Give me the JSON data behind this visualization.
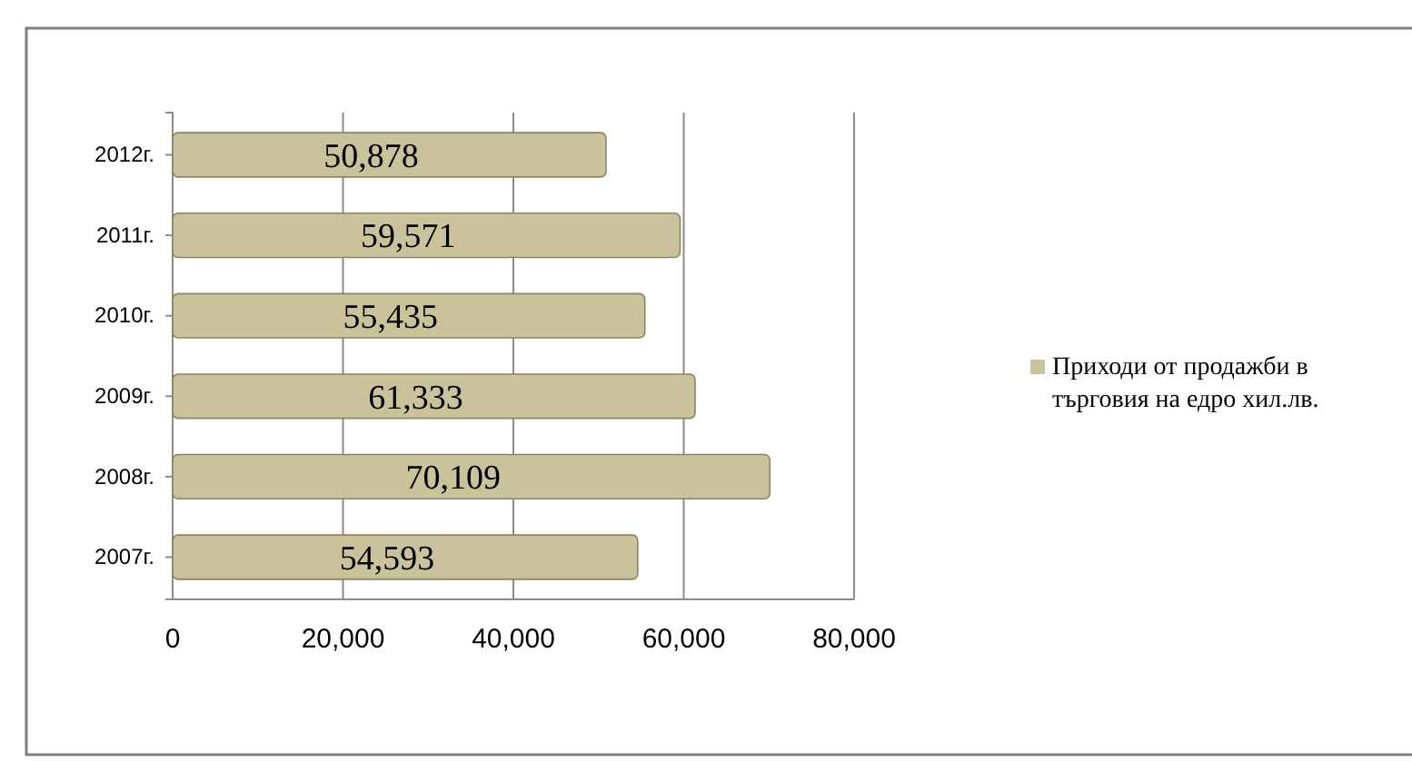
{
  "chart_data": {
    "type": "bar",
    "orientation": "horizontal",
    "categories": [
      "2012г.",
      "2011г.",
      "2010г.",
      "2009г.",
      "2008г.",
      "2007г."
    ],
    "series": [
      {
        "name": "Приходи от продажби в търговия на едро хил.лв.",
        "color": "#c9c29b",
        "values": [
          50878,
          59571,
          55435,
          61333,
          70109,
          54593
        ],
        "value_labels": [
          "50,878",
          "59,571",
          "55,435",
          "61,333",
          "70,109",
          "54,593"
        ]
      }
    ],
    "xlim": [
      0,
      80000
    ],
    "xticks": [
      {
        "value": 0,
        "label": "0"
      },
      {
        "value": 20000,
        "label": "20,000"
      },
      {
        "value": 40000,
        "label": "40,000"
      },
      {
        "value": 60000,
        "label": "60,000"
      },
      {
        "value": 80000,
        "label": "80,000"
      }
    ],
    "grid": "x",
    "legend": "right"
  }
}
